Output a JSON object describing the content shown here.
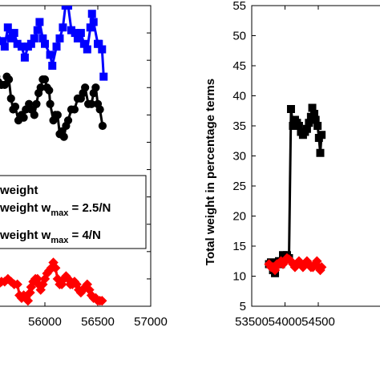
{
  "chart_data": [
    {
      "type": "line",
      "panel": "left",
      "xlim": [
        55500,
        57000
      ],
      "x_ticks": [
        "00",
        "56000",
        "56500",
        "57000"
      ],
      "ylim": [
        0,
        55
      ],
      "legend": {
        "placement": "center-left",
        "entries": [
          {
            "text": "weight",
            "sub": "",
            "rest": ""
          },
          {
            "text": "weight w",
            "sub": "max",
            "rest": " = 2.5/N"
          },
          {
            "text": "weight w",
            "sub": "max",
            "rest": " = 4/N"
          }
        ]
      },
      "series": [
        {
          "color": "#0000ff",
          "marker": "square",
          "points": [
            [
              55505,
              51.5
            ],
            [
              55590,
              48.5
            ],
            [
              55620,
              47.5
            ],
            [
              55650,
              51
            ],
            [
              55680,
              49
            ],
            [
              55710,
              50
            ],
            [
              55740,
              48
            ],
            [
              55780,
              47.5
            ],
            [
              55810,
              45.5
            ],
            [
              55840,
              47.5
            ],
            [
              55870,
              48
            ],
            [
              55900,
              49
            ],
            [
              55930,
              50.5
            ],
            [
              55950,
              52
            ],
            [
              55980,
              49
            ],
            [
              56000,
              48
            ],
            [
              56050,
              46
            ],
            [
              56070,
              44
            ],
            [
              56110,
              47.5
            ],
            [
              56140,
              49
            ],
            [
              56170,
              51
            ],
            [
              56195,
              55
            ],
            [
              56220,
              55
            ],
            [
              56250,
              50.5
            ],
            [
              56285,
              50
            ],
            [
              56310,
              49
            ],
            [
              56340,
              50
            ],
            [
              56370,
              48
            ],
            [
              56400,
              47
            ],
            [
              56430,
              51
            ],
            [
              56445,
              53.5
            ],
            [
              56460,
              52
            ],
            [
              56500,
              48
            ],
            [
              56510,
              48
            ],
            [
              56540,
              47
            ],
            [
              56555,
              42
            ]
          ]
        },
        {
          "color": "#000000",
          "marker": "circle",
          "points": [
            [
              55505,
              41
            ],
            [
              55540,
              42
            ],
            [
              55560,
              41
            ],
            [
              55590,
              40.5
            ],
            [
              55620,
              40.5
            ],
            [
              55640,
              42
            ],
            [
              55660,
              41.5
            ],
            [
              55680,
              38
            ],
            [
              55700,
              36
            ],
            [
              55720,
              36.5
            ],
            [
              55750,
              34
            ],
            [
              55780,
              35
            ],
            [
              55800,
              34.5
            ],
            [
              55820,
              36
            ],
            [
              55850,
              37
            ],
            [
              55870,
              36
            ],
            [
              55900,
              35
            ],
            [
              55920,
              37
            ],
            [
              55940,
              39
            ],
            [
              55960,
              40
            ],
            [
              55980,
              41.5
            ],
            [
              56000,
              41.5
            ],
            [
              56020,
              40
            ],
            [
              56040,
              39.5
            ],
            [
              56050,
              37
            ],
            [
              56080,
              34
            ],
            [
              56100,
              35
            ],
            [
              56120,
              35
            ],
            [
              56140,
              31.5
            ],
            [
              56160,
              32
            ],
            [
              56180,
              31
            ],
            [
              56200,
              33
            ],
            [
              56220,
              34
            ],
            [
              56250,
              36
            ],
            [
              56280,
              36
            ],
            [
              56310,
              38
            ],
            [
              56340,
              38
            ],
            [
              56360,
              39
            ],
            [
              56380,
              40
            ],
            [
              56410,
              37
            ],
            [
              56440,
              37
            ],
            [
              56460,
              39
            ],
            [
              56480,
              40
            ],
            [
              56500,
              37
            ],
            [
              56520,
              36
            ],
            [
              56545,
              33
            ]
          ]
        },
        {
          "color": "#ff0000",
          "marker": "diamond",
          "points": [
            [
              55505,
              4.5
            ],
            [
              55530,
              4
            ],
            [
              55560,
              4
            ],
            [
              55590,
              4.5
            ],
            [
              55620,
              4.5
            ],
            [
              55650,
              5
            ],
            [
              55680,
              4.5
            ],
            [
              55710,
              4
            ],
            [
              55740,
              4
            ],
            [
              55760,
              2
            ],
            [
              55780,
              1.5
            ],
            [
              55800,
              2
            ],
            [
              55820,
              1.5
            ],
            [
              55840,
              1
            ],
            [
              55860,
              2.5
            ],
            [
              55870,
              3.5
            ],
            [
              55890,
              4.5
            ],
            [
              55910,
              5
            ],
            [
              55930,
              5
            ],
            [
              55940,
              4
            ],
            [
              55960,
              3
            ],
            [
              55980,
              4
            ],
            [
              56000,
              5
            ],
            [
              56020,
              6
            ],
            [
              56040,
              6.5
            ],
            [
              56060,
              7
            ],
            [
              56080,
              8
            ],
            [
              56100,
              7
            ],
            [
              56120,
              5
            ],
            [
              56140,
              4
            ],
            [
              56160,
              4
            ],
            [
              56180,
              5
            ],
            [
              56200,
              5.5
            ],
            [
              56220,
              5
            ],
            [
              56240,
              4
            ],
            [
              56260,
              4
            ],
            [
              56280,
              4.5
            ],
            [
              56300,
              4
            ],
            [
              56320,
              3
            ],
            [
              56340,
              2.5
            ],
            [
              56360,
              3
            ],
            [
              56380,
              3.5
            ],
            [
              56400,
              4
            ],
            [
              56420,
              3
            ],
            [
              56440,
              2
            ],
            [
              56460,
              1.5
            ],
            [
              56480,
              1.5
            ],
            [
              56500,
              1
            ],
            [
              56520,
              1
            ],
            [
              56540,
              1
            ]
          ]
        }
      ]
    },
    {
      "type": "line",
      "panel": "right",
      "ylabel": "Total weight in percentage terms",
      "xlim": [
        53500,
        55500
      ],
      "x_ticks": [
        "53500",
        "54000",
        "54500"
      ],
      "ylim": [
        5,
        55
      ],
      "y_ticks": [
        "5",
        "10",
        "15",
        "20",
        "25",
        "30",
        "35",
        "40",
        "45",
        "50",
        "55"
      ],
      "series": [
        {
          "color": "#000000",
          "marker": "square",
          "points": [
            [
              53760,
              12
            ],
            [
              53790,
              12.3
            ],
            [
              53820,
              11
            ],
            [
              53850,
              10.5
            ],
            [
              53880,
              12
            ],
            [
              53910,
              12.5
            ],
            [
              53940,
              12
            ],
            [
              53970,
              13.5
            ],
            [
              54000,
              13
            ],
            [
              54030,
              13.5
            ],
            [
              54060,
              13
            ],
            [
              54090,
              37.8
            ],
            [
              54120,
              35
            ],
            [
              54150,
              36
            ],
            [
              54180,
              35.5
            ],
            [
              54210,
              35
            ],
            [
              54240,
              34
            ],
            [
              54270,
              33.5
            ],
            [
              54300,
              34
            ],
            [
              54330,
              34.5
            ],
            [
              54360,
              35.5
            ],
            [
              54390,
              36.5
            ],
            [
              54410,
              38
            ],
            [
              54440,
              37
            ],
            [
              54460,
              36
            ],
            [
              54490,
              35
            ],
            [
              54510,
              33
            ],
            [
              54530,
              30.5
            ],
            [
              54550,
              33.5
            ]
          ]
        },
        {
          "color": "#ff0000",
          "marker": "diamond",
          "points": [
            [
              53760,
              12
            ],
            [
              53790,
              11.5
            ],
            [
              53820,
              11.5
            ],
            [
              53850,
              11
            ],
            [
              53880,
              12
            ],
            [
              53910,
              12
            ],
            [
              53940,
              12.5
            ],
            [
              53970,
              12
            ],
            [
              54000,
              12.5
            ],
            [
              54030,
              13
            ],
            [
              54060,
              12.8
            ],
            [
              54090,
              12.5
            ],
            [
              54120,
              12
            ],
            [
              54150,
              11.5
            ],
            [
              54180,
              12
            ],
            [
              54210,
              12.5
            ],
            [
              54240,
              12
            ],
            [
              54270,
              11.5
            ],
            [
              54300,
              12
            ],
            [
              54330,
              12.5
            ],
            [
              54360,
              12
            ],
            [
              54390,
              11.5
            ],
            [
              54420,
              11.5
            ],
            [
              54450,
              12
            ],
            [
              54480,
              12.5
            ],
            [
              54510,
              11.5
            ],
            [
              54530,
              11
            ],
            [
              54550,
              11.5
            ]
          ]
        }
      ]
    }
  ]
}
